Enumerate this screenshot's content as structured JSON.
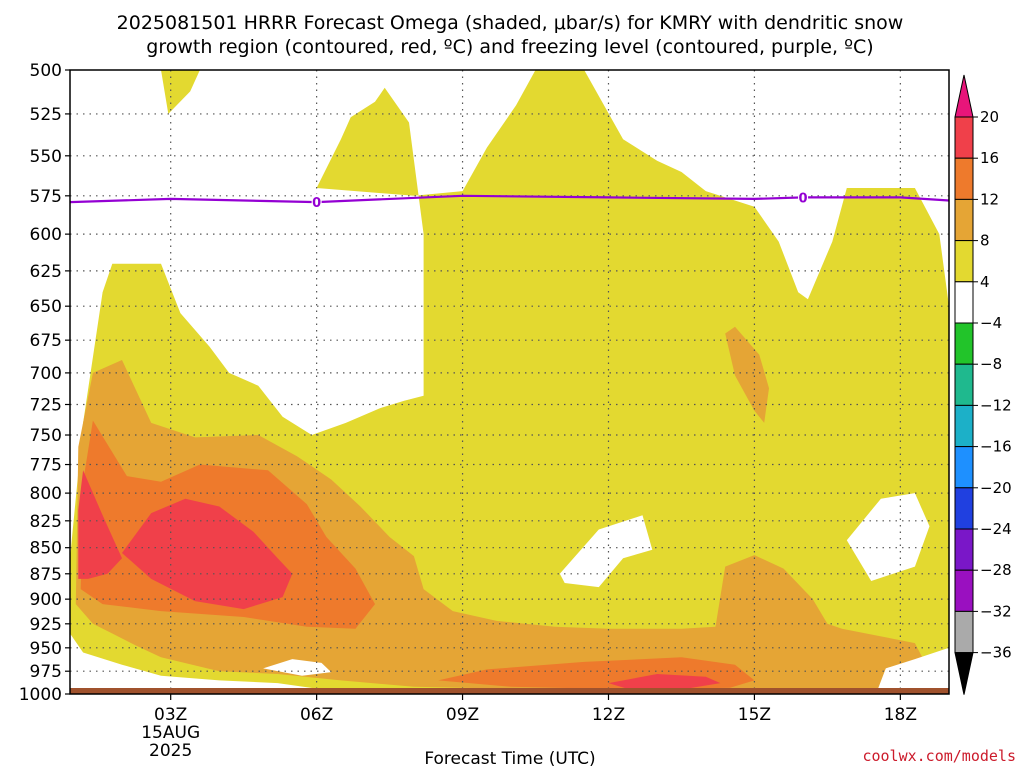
{
  "title": {
    "line1": "2025081501 HRRR Forecast Omega (shaded, μbar/s) for KMRY with dendritic snow",
    "line2": "growth region (contoured, red, ºC) and freezing level (contoured, purple, ºC)"
  },
  "credit": "coolwx.com/models",
  "colors": {
    "freezing_line": "#9400d3",
    "ground": "#a0522d",
    "grid": "#555555"
  },
  "chart_data": {
    "type": "heatmap",
    "xlabel": "Forecast Time (UTC)",
    "ylabel": "",
    "x_range_hours": [
      0.93,
      19
    ],
    "y_range_mb": [
      500,
      1000
    ],
    "y_scale": "log-pressure",
    "grid": true,
    "y_ticks": [
      500,
      525,
      550,
      575,
      600,
      625,
      650,
      675,
      700,
      725,
      750,
      775,
      800,
      825,
      850,
      875,
      900,
      925,
      950,
      975,
      1000
    ],
    "x_ticks": [
      {
        "hour": 3,
        "label": "03Z",
        "sub1": "15AUG",
        "sub2": "2025"
      },
      {
        "hour": 6,
        "label": "06Z",
        "sub1": "",
        "sub2": ""
      },
      {
        "hour": 9,
        "label": "09Z",
        "sub1": "",
        "sub2": ""
      },
      {
        "hour": 12,
        "label": "12Z",
        "sub1": "",
        "sub2": ""
      },
      {
        "hour": 15,
        "label": "15Z",
        "sub1": "",
        "sub2": ""
      },
      {
        "hour": 18,
        "label": "18Z",
        "sub1": "",
        "sub2": ""
      }
    ],
    "freezing_level": {
      "label": "0",
      "label_hours": [
        6,
        16
      ],
      "points": [
        [
          0.93,
          579
        ],
        [
          3,
          577
        ],
        [
          6,
          579
        ],
        [
          9,
          575
        ],
        [
          12,
          576
        ],
        [
          15,
          577
        ],
        [
          16,
          576
        ],
        [
          18,
          576
        ],
        [
          19,
          578
        ]
      ]
    },
    "colorbar": {
      "labels": [
        "20",
        "16",
        "12",
        "8",
        "4",
        "-4",
        "-8",
        "-12",
        "-16",
        "-20",
        "-24",
        "-28",
        "-32",
        "-36"
      ],
      "bins": [
        {
          "range": "16 to 20",
          "color": "#f0404a"
        },
        {
          "range": "12 to 16",
          "color": "#ee7a2c"
        },
        {
          "range": "8 to 12",
          "color": "#e5a535"
        },
        {
          "range": "4 to 8",
          "color": "#e3d930"
        },
        {
          "range": "-4 to 4",
          "color": "#ffffff"
        },
        {
          "range": "-8 to -4",
          "color": "#22c42a"
        },
        {
          "range": "-12 to -8",
          "color": "#1fb98e"
        },
        {
          "range": "-16 to -12",
          "color": "#1cb0c8"
        },
        {
          "range": "-20 to -16",
          "color": "#1e90ff"
        },
        {
          "range": "-24 to -20",
          "color": "#2040e0"
        },
        {
          "range": "-28 to -24",
          "color": "#7a17c8"
        },
        {
          "range": "-32 to -28",
          "color": "#9a10c0"
        },
        {
          "range": "-36 to -32",
          "color": "#aaaaaa"
        }
      ],
      "top_arrow_color": "#e8157a",
      "bottom_arrow_color": "#000000"
    },
    "shaded_regions": [
      {
        "name": "omega-4-8-main",
        "color": "#e3d930",
        "points": [
          [
            0.93,
            1000
          ],
          [
            0.93,
            860
          ],
          [
            1.2,
            740
          ],
          [
            1.6,
            640
          ],
          [
            1.8,
            620
          ],
          [
            2.8,
            620
          ],
          [
            3.2,
            655
          ],
          [
            3.8,
            680
          ],
          [
            4.2,
            700
          ],
          [
            4.8,
            710
          ],
          [
            5.3,
            735
          ],
          [
            5.9,
            750
          ],
          [
            6.6,
            740
          ],
          [
            7.3,
            728
          ],
          [
            7.8,
            722
          ],
          [
            8.2,
            718
          ],
          [
            8.2,
            710
          ],
          [
            8.2,
            600
          ],
          [
            7.9,
            530
          ],
          [
            7.4,
            510
          ],
          [
            7.2,
            518
          ],
          [
            6.7,
            527
          ],
          [
            6.5,
            540
          ],
          [
            6.0,
            570
          ],
          [
            8.0,
            575
          ],
          [
            9.0,
            572
          ],
          [
            9.5,
            545
          ],
          [
            10.1,
            520
          ],
          [
            10.5,
            500
          ],
          [
            11.5,
            500
          ],
          [
            12.3,
            540
          ],
          [
            13,
            553
          ],
          [
            13.5,
            560
          ],
          [
            14,
            572
          ],
          [
            15,
            582
          ],
          [
            15.5,
            605
          ],
          [
            15.9,
            640
          ],
          [
            16.1,
            645
          ],
          [
            16.6,
            605
          ],
          [
            16.9,
            570
          ],
          [
            18.3,
            570
          ],
          [
            18.8,
            600
          ],
          [
            19,
            650
          ],
          [
            19,
            1000
          ]
        ]
      },
      {
        "name": "omega-4-8-top",
        "color": "#e3d930",
        "points": [
          [
            2.8,
            500
          ],
          [
            3.6,
            500
          ],
          [
            3.4,
            512
          ],
          [
            2.95,
            525
          ],
          [
            2.8,
            500
          ]
        ]
      },
      {
        "name": "omega-8-12",
        "color": "#e5a535",
        "points": [
          [
            1.05,
            905
          ],
          [
            1.1,
            760
          ],
          [
            1.4,
            700
          ],
          [
            2.0,
            690
          ],
          [
            2.6,
            740
          ],
          [
            3.5,
            752
          ],
          [
            4.8,
            750
          ],
          [
            5.6,
            768
          ],
          [
            6.3,
            788
          ],
          [
            6.9,
            812
          ],
          [
            7.5,
            840
          ],
          [
            8.0,
            858
          ],
          [
            8.2,
            890
          ],
          [
            8.8,
            912
          ],
          [
            9.7,
            922
          ],
          [
            10.9,
            928
          ],
          [
            12,
            930
          ],
          [
            13.5,
            930
          ],
          [
            14.2,
            928
          ],
          [
            14.4,
            868
          ],
          [
            15.0,
            857
          ],
          [
            15.6,
            870
          ],
          [
            16.2,
            900
          ],
          [
            16.5,
            925
          ],
          [
            16.8,
            930
          ],
          [
            17.3,
            935
          ],
          [
            18.3,
            945
          ],
          [
            18.6,
            975
          ],
          [
            18.2,
            990
          ],
          [
            17.2,
            995
          ],
          [
            12.5,
            997
          ],
          [
            8.0,
            992
          ],
          [
            6.5,
            985
          ],
          [
            5.2,
            978
          ],
          [
            4.0,
            975
          ],
          [
            2.8,
            960
          ],
          [
            2.3,
            948
          ],
          [
            1.8,
            935
          ],
          [
            1.4,
            925
          ],
          [
            1.05,
            905
          ]
        ]
      },
      {
        "name": "omega-8-12-east",
        "color": "#e5a535",
        "points": [
          [
            14.6,
            665
          ],
          [
            15.1,
            686
          ],
          [
            15.3,
            712
          ],
          [
            15.2,
            740
          ],
          [
            15.0,
            730
          ],
          [
            14.6,
            702
          ],
          [
            14.4,
            670
          ],
          [
            14.6,
            665
          ]
        ]
      },
      {
        "name": "omega-12-16",
        "color": "#ee7a2c",
        "points": [
          [
            1.15,
            890
          ],
          [
            1.2,
            790
          ],
          [
            1.4,
            738
          ],
          [
            2.1,
            785
          ],
          [
            2.8,
            790
          ],
          [
            3.6,
            775
          ],
          [
            5.0,
            780
          ],
          [
            5.8,
            810
          ],
          [
            6.2,
            840
          ],
          [
            6.8,
            870
          ],
          [
            7.2,
            905
          ],
          [
            6.8,
            930
          ],
          [
            5.8,
            928
          ],
          [
            4.5,
            918
          ],
          [
            2.8,
            912
          ],
          [
            1.6,
            905
          ],
          [
            1.15,
            890
          ]
        ]
      },
      {
        "name": "omega-16-20-west",
        "color": "#f0404a",
        "points": [
          [
            1.1,
            880
          ],
          [
            1.1,
            815
          ],
          [
            1.2,
            780
          ],
          [
            1.6,
            820
          ],
          [
            2.0,
            860
          ],
          [
            1.7,
            875
          ],
          [
            1.3,
            880
          ],
          [
            1.1,
            880
          ]
        ]
      },
      {
        "name": "omega-16-20-main",
        "color": "#f0404a",
        "points": [
          [
            2.0,
            855
          ],
          [
            2.6,
            818
          ],
          [
            3.3,
            805
          ],
          [
            4.0,
            812
          ],
          [
            4.7,
            835
          ],
          [
            5.2,
            860
          ],
          [
            5.5,
            875
          ],
          [
            5.3,
            898
          ],
          [
            4.5,
            910
          ],
          [
            3.5,
            902
          ],
          [
            2.6,
            880
          ],
          [
            2.0,
            855
          ]
        ]
      },
      {
        "name": "omega-12-16-surface",
        "color": "#ee7a2c",
        "points": [
          [
            8.5,
            985
          ],
          [
            9.5,
            973
          ],
          [
            11.5,
            965
          ],
          [
            13.5,
            960
          ],
          [
            14.6,
            968
          ],
          [
            15.0,
            985
          ],
          [
            14.5,
            993
          ],
          [
            12.5,
            995
          ],
          [
            10.0,
            992
          ],
          [
            8.5,
            985
          ]
        ]
      },
      {
        "name": "omega-16-20-surface",
        "color": "#f0404a",
        "points": [
          [
            12.0,
            988
          ],
          [
            13.0,
            978
          ],
          [
            14.0,
            981
          ],
          [
            14.3,
            988
          ],
          [
            13.5,
            995
          ],
          [
            12.5,
            996
          ],
          [
            12.0,
            988
          ]
        ]
      },
      {
        "name": "omega-white-low-left",
        "color": "#ffffff",
        "points": [
          [
            0.93,
            1000
          ],
          [
            0.93,
            935
          ],
          [
            1.2,
            955
          ],
          [
            2.0,
            968
          ],
          [
            2.8,
            980
          ],
          [
            4.0,
            985
          ],
          [
            5.2,
            988
          ],
          [
            6.0,
            994
          ],
          [
            6.5,
            1000
          ]
        ]
      },
      {
        "name": "omega-white-pocket",
        "color": "#ffffff",
        "points": [
          [
            4.9,
            972
          ],
          [
            5.5,
            962
          ],
          [
            6.1,
            966
          ],
          [
            6.3,
            976
          ],
          [
            5.7,
            980
          ],
          [
            4.9,
            972
          ]
        ]
      },
      {
        "name": "omega-white-mid",
        "color": "#ffffff",
        "points": [
          [
            11.0,
            875
          ],
          [
            11.8,
            833
          ],
          [
            12.7,
            820
          ],
          [
            12.9,
            852
          ],
          [
            12.3,
            860
          ],
          [
            11.8,
            888
          ],
          [
            11.1,
            884
          ],
          [
            11.0,
            875
          ]
        ]
      },
      {
        "name": "omega-white-east",
        "color": "#ffffff",
        "points": [
          [
            16.9,
            843
          ],
          [
            17.6,
            805
          ],
          [
            18.3,
            800
          ],
          [
            18.6,
            830
          ],
          [
            18.3,
            868
          ],
          [
            17.4,
            882
          ],
          [
            16.9,
            843
          ]
        ]
      },
      {
        "name": "omega-white-se",
        "color": "#ffffff",
        "points": [
          [
            17.5,
            1000
          ],
          [
            17.7,
            972
          ],
          [
            18.3,
            962
          ],
          [
            19,
            950
          ],
          [
            19,
            1000
          ]
        ]
      }
    ]
  }
}
